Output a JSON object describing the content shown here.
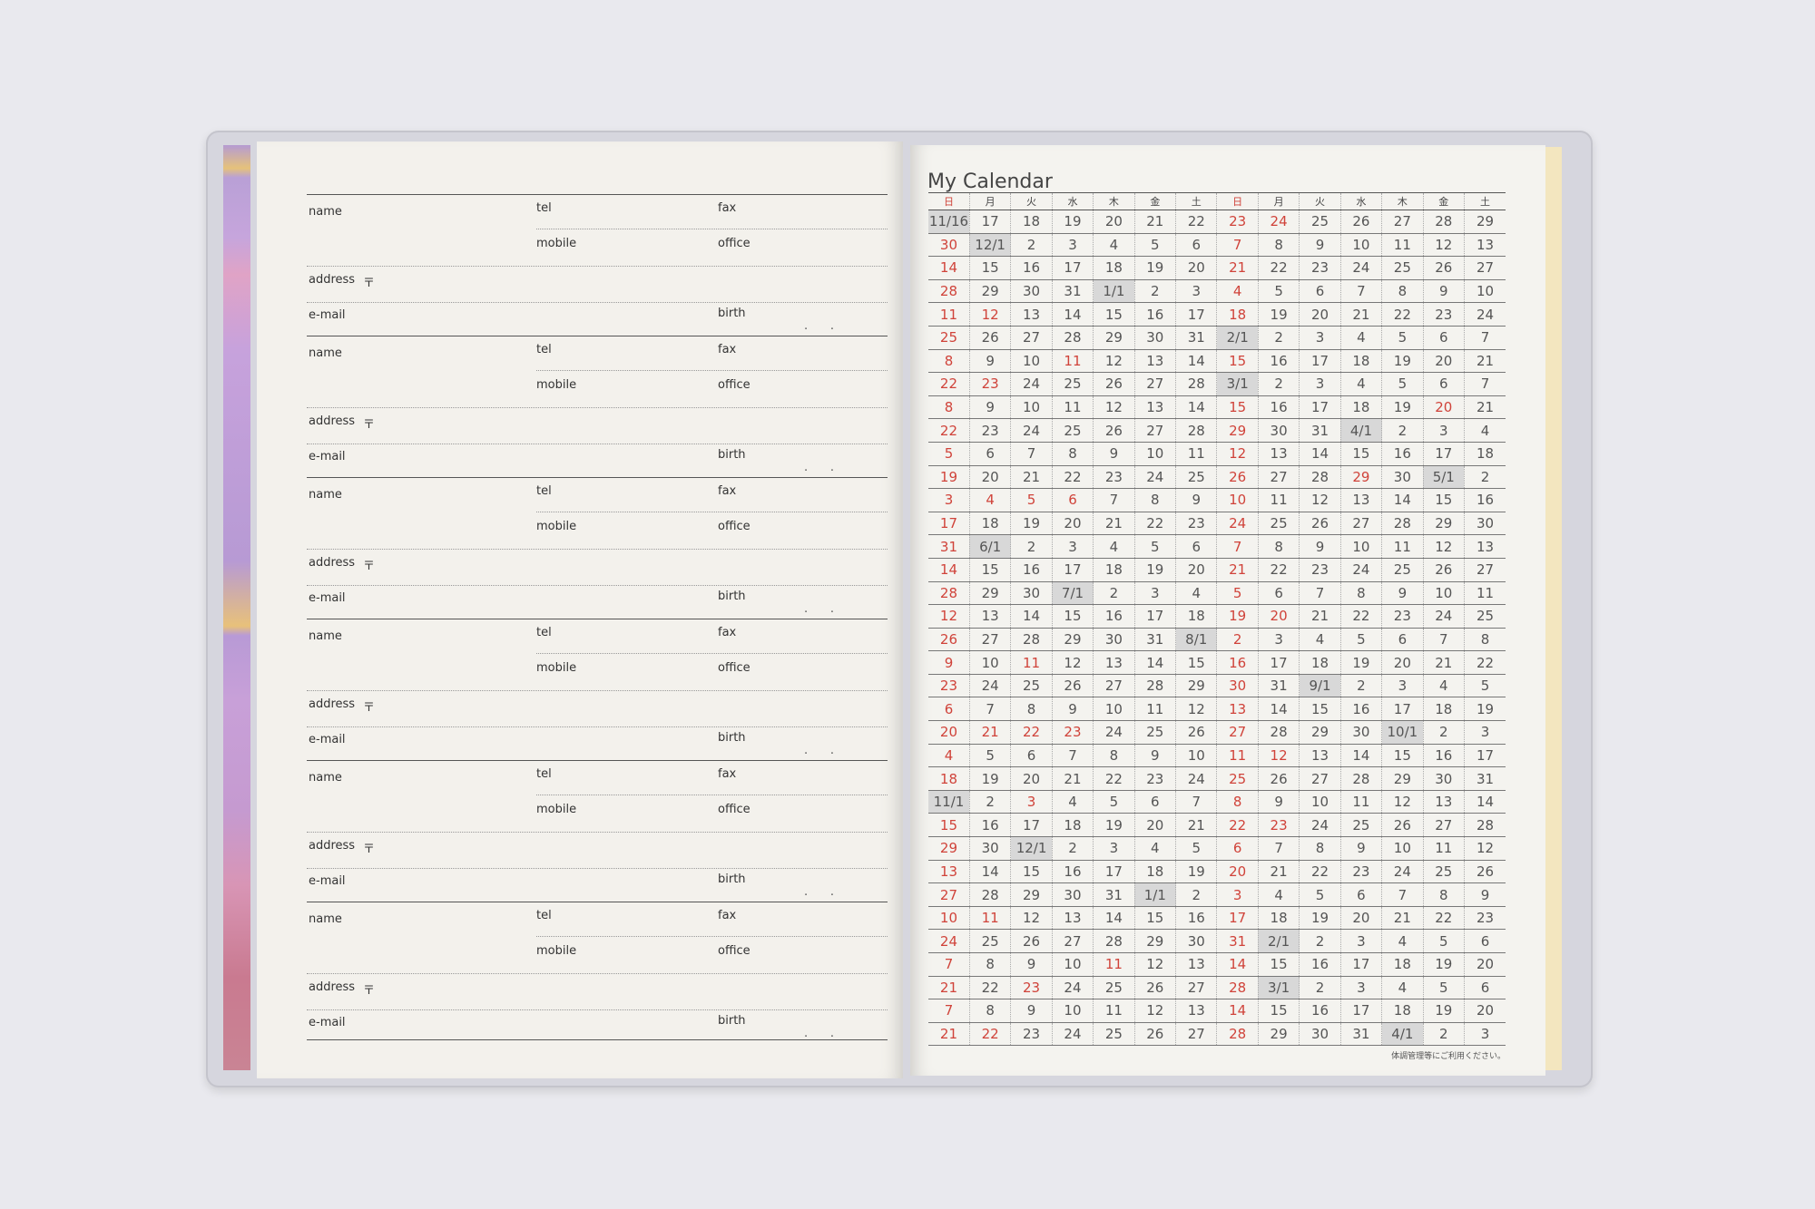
{
  "address_book": {
    "labels": {
      "name": "name",
      "tel": "tel",
      "fax": "fax",
      "mobile": "mobile",
      "office": "office",
      "address": "address",
      "postal_mark": "〒",
      "email": "e-mail",
      "birth": "birth",
      "date_dots": ".      ."
    },
    "entry_count": 6
  },
  "calendar": {
    "title": "My Calendar",
    "weekday_headers": [
      "日",
      "月",
      "火",
      "水",
      "木",
      "金",
      "土",
      "日",
      "月",
      "火",
      "水",
      "木",
      "金",
      "土"
    ],
    "red_headers": [
      0,
      7
    ],
    "footnote": "体調管理等にご利用ください。",
    "accent_red": "#d0433a",
    "rows": [
      {
        "cells": [
          "11/16",
          "17",
          "18",
          "19",
          "20",
          "21",
          "22",
          "23",
          "24",
          "25",
          "26",
          "27",
          "28",
          "29"
        ],
        "red": [
          7,
          8
        ]
      },
      {
        "cells": [
          "30",
          "12/1",
          "2",
          "3",
          "4",
          "5",
          "6",
          "7",
          "8",
          "9",
          "10",
          "11",
          "12",
          "13"
        ],
        "red": [
          0,
          7
        ]
      },
      {
        "cells": [
          "14",
          "15",
          "16",
          "17",
          "18",
          "19",
          "20",
          "21",
          "22",
          "23",
          "24",
          "25",
          "26",
          "27"
        ],
        "red": [
          0,
          7
        ]
      },
      {
        "cells": [
          "28",
          "29",
          "30",
          "31",
          "1/1",
          "2",
          "3",
          "4",
          "5",
          "6",
          "7",
          "8",
          "9",
          "10"
        ],
        "red": [
          0,
          7
        ]
      },
      {
        "cells": [
          "11",
          "12",
          "13",
          "14",
          "15",
          "16",
          "17",
          "18",
          "19",
          "20",
          "21",
          "22",
          "23",
          "24"
        ],
        "red": [
          0,
          1,
          7
        ]
      },
      {
        "cells": [
          "25",
          "26",
          "27",
          "28",
          "29",
          "30",
          "31",
          "2/1",
          "2",
          "3",
          "4",
          "5",
          "6",
          "7"
        ],
        "red": [
          0
        ]
      },
      {
        "cells": [
          "8",
          "9",
          "10",
          "11",
          "12",
          "13",
          "14",
          "15",
          "16",
          "17",
          "18",
          "19",
          "20",
          "21"
        ],
        "red": [
          0,
          3,
          7
        ]
      },
      {
        "cells": [
          "22",
          "23",
          "24",
          "25",
          "26",
          "27",
          "28",
          "3/1",
          "2",
          "3",
          "4",
          "5",
          "6",
          "7"
        ],
        "red": [
          0,
          1
        ]
      },
      {
        "cells": [
          "8",
          "9",
          "10",
          "11",
          "12",
          "13",
          "14",
          "15",
          "16",
          "17",
          "18",
          "19",
          "20",
          "21"
        ],
        "red": [
          0,
          7,
          12
        ]
      },
      {
        "cells": [
          "22",
          "23",
          "24",
          "25",
          "26",
          "27",
          "28",
          "29",
          "30",
          "31",
          "4/1",
          "2",
          "3",
          "4"
        ],
        "red": [
          0,
          7
        ]
      },
      {
        "cells": [
          "5",
          "6",
          "7",
          "8",
          "9",
          "10",
          "11",
          "12",
          "13",
          "14",
          "15",
          "16",
          "17",
          "18"
        ],
        "red": [
          0,
          7
        ]
      },
      {
        "cells": [
          "19",
          "20",
          "21",
          "22",
          "23",
          "24",
          "25",
          "26",
          "27",
          "28",
          "29",
          "30",
          "5/1",
          "2"
        ],
        "red": [
          0,
          7,
          10
        ]
      },
      {
        "cells": [
          "3",
          "4",
          "5",
          "6",
          "7",
          "8",
          "9",
          "10",
          "11",
          "12",
          "13",
          "14",
          "15",
          "16"
        ],
        "red": [
          0,
          1,
          2,
          3,
          7
        ]
      },
      {
        "cells": [
          "17",
          "18",
          "19",
          "20",
          "21",
          "22",
          "23",
          "24",
          "25",
          "26",
          "27",
          "28",
          "29",
          "30"
        ],
        "red": [
          0,
          7
        ]
      },
      {
        "cells": [
          "31",
          "6/1",
          "2",
          "3",
          "4",
          "5",
          "6",
          "7",
          "8",
          "9",
          "10",
          "11",
          "12",
          "13"
        ],
        "red": [
          0,
          7
        ]
      },
      {
        "cells": [
          "14",
          "15",
          "16",
          "17",
          "18",
          "19",
          "20",
          "21",
          "22",
          "23",
          "24",
          "25",
          "26",
          "27"
        ],
        "red": [
          0,
          7
        ]
      },
      {
        "cells": [
          "28",
          "29",
          "30",
          "7/1",
          "2",
          "3",
          "4",
          "5",
          "6",
          "7",
          "8",
          "9",
          "10",
          "11"
        ],
        "red": [
          0,
          7
        ]
      },
      {
        "cells": [
          "12",
          "13",
          "14",
          "15",
          "16",
          "17",
          "18",
          "19",
          "20",
          "21",
          "22",
          "23",
          "24",
          "25"
        ],
        "red": [
          0,
          7,
          8
        ]
      },
      {
        "cells": [
          "26",
          "27",
          "28",
          "29",
          "30",
          "31",
          "8/1",
          "2",
          "3",
          "4",
          "5",
          "6",
          "7",
          "8"
        ],
        "red": [
          0,
          7
        ]
      },
      {
        "cells": [
          "9",
          "10",
          "11",
          "12",
          "13",
          "14",
          "15",
          "16",
          "17",
          "18",
          "19",
          "20",
          "21",
          "22"
        ],
        "red": [
          0,
          2,
          7
        ]
      },
      {
        "cells": [
          "23",
          "24",
          "25",
          "26",
          "27",
          "28",
          "29",
          "30",
          "31",
          "9/1",
          "2",
          "3",
          "4",
          "5"
        ],
        "red": [
          0,
          7
        ]
      },
      {
        "cells": [
          "6",
          "7",
          "8",
          "9",
          "10",
          "11",
          "12",
          "13",
          "14",
          "15",
          "16",
          "17",
          "18",
          "19"
        ],
        "red": [
          0,
          7
        ]
      },
      {
        "cells": [
          "20",
          "21",
          "22",
          "23",
          "24",
          "25",
          "26",
          "27",
          "28",
          "29",
          "30",
          "10/1",
          "2",
          "3"
        ],
        "red": [
          0,
          1,
          2,
          3,
          7
        ]
      },
      {
        "cells": [
          "4",
          "5",
          "6",
          "7",
          "8",
          "9",
          "10",
          "11",
          "12",
          "13",
          "14",
          "15",
          "16",
          "17"
        ],
        "red": [
          0,
          7,
          8
        ]
      },
      {
        "cells": [
          "18",
          "19",
          "20",
          "21",
          "22",
          "23",
          "24",
          "25",
          "26",
          "27",
          "28",
          "29",
          "30",
          "31"
        ],
        "red": [
          0,
          7
        ]
      },
      {
        "cells": [
          "11/1",
          "2",
          "3",
          "4",
          "5",
          "6",
          "7",
          "8",
          "9",
          "10",
          "11",
          "12",
          "13",
          "14"
        ],
        "red": [
          2,
          7
        ]
      },
      {
        "cells": [
          "15",
          "16",
          "17",
          "18",
          "19",
          "20",
          "21",
          "22",
          "23",
          "24",
          "25",
          "26",
          "27",
          "28"
        ],
        "red": [
          0,
          7,
          8
        ]
      },
      {
        "cells": [
          "29",
          "30",
          "12/1",
          "2",
          "3",
          "4",
          "5",
          "6",
          "7",
          "8",
          "9",
          "10",
          "11",
          "12"
        ],
        "red": [
          0,
          7
        ]
      },
      {
        "cells": [
          "13",
          "14",
          "15",
          "16",
          "17",
          "18",
          "19",
          "20",
          "21",
          "22",
          "23",
          "24",
          "25",
          "26"
        ],
        "red": [
          0,
          7
        ]
      },
      {
        "cells": [
          "27",
          "28",
          "29",
          "30",
          "31",
          "1/1",
          "2",
          "3",
          "4",
          "5",
          "6",
          "7",
          "8",
          "9"
        ],
        "red": [
          0,
          7
        ]
      },
      {
        "cells": [
          "10",
          "11",
          "12",
          "13",
          "14",
          "15",
          "16",
          "17",
          "18",
          "19",
          "20",
          "21",
          "22",
          "23"
        ],
        "red": [
          0,
          1,
          7
        ]
      },
      {
        "cells": [
          "24",
          "25",
          "26",
          "27",
          "28",
          "29",
          "30",
          "31",
          "2/1",
          "2",
          "3",
          "4",
          "5",
          "6"
        ],
        "red": [
          0,
          7
        ]
      },
      {
        "cells": [
          "7",
          "8",
          "9",
          "10",
          "11",
          "12",
          "13",
          "14",
          "15",
          "16",
          "17",
          "18",
          "19",
          "20"
        ],
        "red": [
          0,
          4,
          7
        ]
      },
      {
        "cells": [
          "21",
          "22",
          "23",
          "24",
          "25",
          "26",
          "27",
          "28",
          "3/1",
          "2",
          "3",
          "4",
          "5",
          "6"
        ],
        "red": [
          0,
          2,
          7
        ]
      },
      {
        "cells": [
          "7",
          "8",
          "9",
          "10",
          "11",
          "12",
          "13",
          "14",
          "15",
          "16",
          "17",
          "18",
          "19",
          "20"
        ],
        "red": [
          0,
          7
        ]
      },
      {
        "cells": [
          "21",
          "22",
          "23",
          "24",
          "25",
          "26",
          "27",
          "28",
          "29",
          "30",
          "31",
          "4/1",
          "2",
          "3"
        ],
        "red": [
          0,
          1,
          7
        ]
      }
    ]
  }
}
